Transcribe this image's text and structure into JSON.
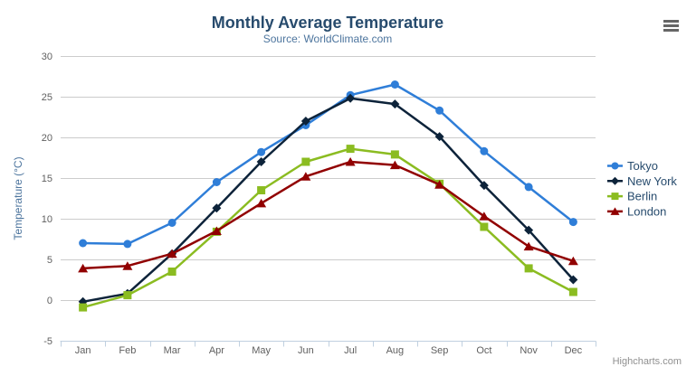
{
  "credits": {
    "label": "Highcharts.com"
  },
  "menu": {
    "icon_name": "hamburger-menu-icon"
  },
  "theme": {
    "title_color": "#274b6d",
    "subtitle_color": "#4d759e",
    "axis_label_color": "#606060",
    "grid_color": "#cccccc",
    "axis_line_color": "#c0d0e0",
    "legend_text_color": "#274b6d",
    "credits_color": "#909090",
    "menu_icon_color": "#666666",
    "background": "#ffffff"
  },
  "chart_data": {
    "type": "line",
    "title": "Monthly Average Temperature",
    "subtitle": "Source: WorldClimate.com",
    "categories": [
      "Jan",
      "Feb",
      "Mar",
      "Apr",
      "May",
      "Jun",
      "Jul",
      "Aug",
      "Sep",
      "Oct",
      "Nov",
      "Dec"
    ],
    "series": [
      {
        "name": "Tokyo",
        "color": "#2f7ed8",
        "marker": "circle",
        "values": [
          7.0,
          6.9,
          9.5,
          14.5,
          18.2,
          21.5,
          25.2,
          26.5,
          23.3,
          18.3,
          13.9,
          9.6
        ]
      },
      {
        "name": "New York",
        "color": "#0d233a",
        "marker": "diamond",
        "values": [
          -0.2,
          0.8,
          5.7,
          11.3,
          17.0,
          22.0,
          24.8,
          24.1,
          20.1,
          14.1,
          8.6,
          2.5
        ]
      },
      {
        "name": "Berlin",
        "color": "#8bbc21",
        "marker": "square",
        "values": [
          -0.9,
          0.6,
          3.5,
          8.4,
          13.5,
          17.0,
          18.6,
          17.9,
          14.3,
          9.0,
          3.9,
          1.0
        ]
      },
      {
        "name": "London",
        "color": "#910000",
        "marker": "triangle",
        "values": [
          3.9,
          4.2,
          5.7,
          8.5,
          11.9,
          15.2,
          17.0,
          16.6,
          14.2,
          10.3,
          6.6,
          4.8
        ]
      }
    ],
    "xlabel": "",
    "ylabel": "Temperature (°C)",
    "ylim": [
      -5,
      30
    ],
    "yticks": [
      -5,
      0,
      5,
      10,
      15,
      20,
      25,
      30
    ],
    "grid": true,
    "legend_position": "right"
  }
}
